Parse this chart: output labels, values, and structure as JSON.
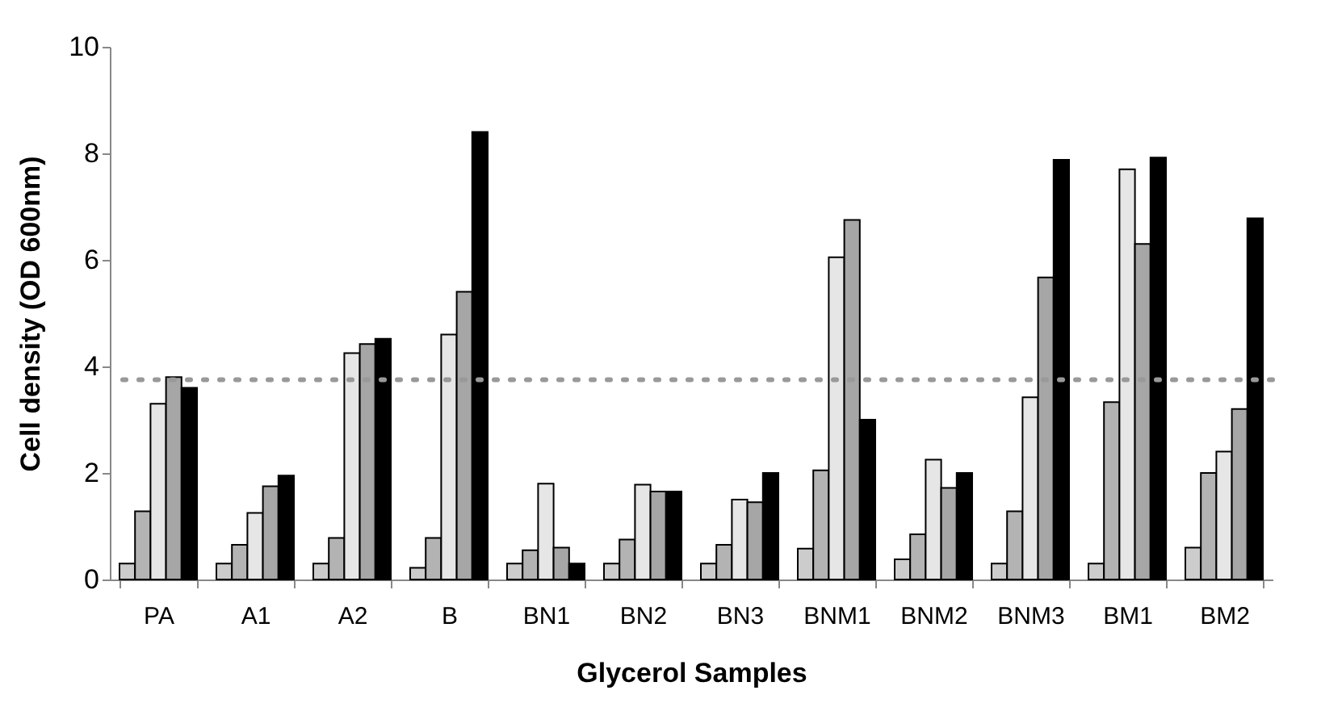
{
  "chart_data": {
    "type": "bar",
    "xlabel": "Glycerol Samples",
    "ylabel": "Cell density (OD 600nm)",
    "categories": [
      "PA",
      "A1",
      "A2",
      "B",
      "BN1",
      "BN2",
      "BN3",
      "BNM1",
      "BNM2",
      "BNM3",
      "BM1",
      "BM2"
    ],
    "series": [
      {
        "color": "#cccccc",
        "values": [
          0.3,
          0.3,
          0.3,
          0.22,
          0.3,
          0.3,
          0.3,
          0.58,
          0.38,
          0.3,
          0.3,
          0.6
        ]
      },
      {
        "color": "#b3b3b3",
        "values": [
          1.28,
          0.65,
          0.78,
          0.78,
          0.55,
          0.75,
          0.65,
          2.05,
          0.85,
          1.28,
          3.33,
          2.0
        ]
      },
      {
        "color": "#e6e6e6",
        "values": [
          3.3,
          1.25,
          4.25,
          4.6,
          1.8,
          1.78,
          1.5,
          6.05,
          2.25,
          3.42,
          7.7,
          2.4
        ]
      },
      {
        "color": "#a6a6a6",
        "values": [
          3.8,
          1.75,
          4.42,
          5.4,
          0.6,
          1.65,
          1.45,
          6.75,
          1.72,
          5.67,
          6.3,
          3.2
        ]
      },
      {
        "color": "#000000",
        "values": [
          3.6,
          1.95,
          4.52,
          8.4,
          0.3,
          1.65,
          2.0,
          3.0,
          2.0,
          7.88,
          7.92,
          6.78
        ]
      }
    ],
    "ylim": [
      0,
      10
    ],
    "yticks": [
      0,
      2,
      4,
      6,
      8,
      10
    ],
    "grid": false,
    "legend": false,
    "ref_lines": [
      {
        "axis": "y",
        "value": 3.75,
        "color": "#999999",
        "line_style": "dotted"
      }
    ]
  }
}
